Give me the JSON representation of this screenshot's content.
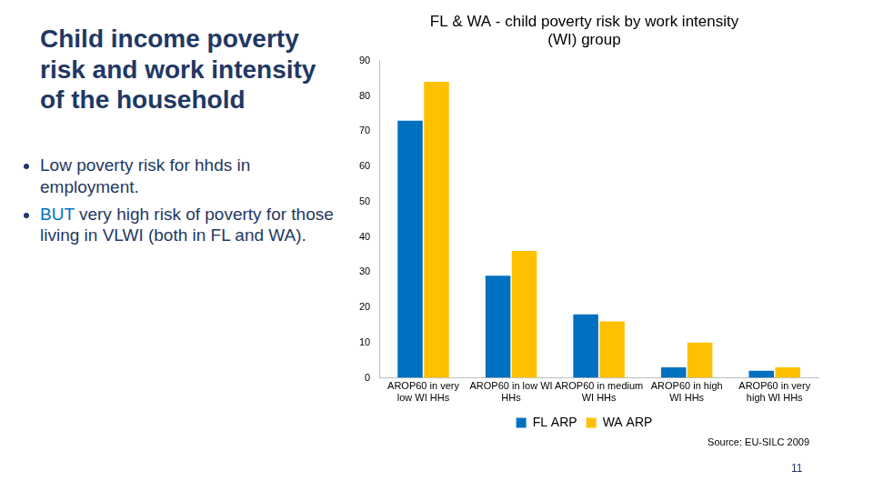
{
  "slide": {
    "title": "Child income poverty risk and work intensity of the household",
    "bullets": [
      [
        "Low poverty risk for hhds in employment."
      ],
      [
        "BUT",
        "very high risk of poverty for those living in VLWI (both in FL and WA)."
      ]
    ],
    "source": "Source: EU-SILC 2009",
    "page": 11
  },
  "chart_data": {
    "type": "bar",
    "title": "FL & WA - child poverty risk by work intensity (WI) group",
    "categories": [
      "AROP60 in very low WI HHs",
      "AROP60 in low WI HHs",
      "AROP60 in medium WI HHs",
      "AROP60 in high WI HHs",
      "AROP60 in very high WI HHs"
    ],
    "series": [
      {
        "name": "FL ARP",
        "color": "#0070c0",
        "values": [
          73,
          29,
          18,
          3,
          2
        ]
      },
      {
        "name": "WA ARP",
        "color": "#ffc000",
        "values": [
          84,
          36,
          16,
          10,
          3
        ]
      }
    ],
    "ylim": [
      0,
      90
    ],
    "yticks": [
      0,
      10,
      20,
      30,
      40,
      50,
      60,
      70,
      80,
      90
    ],
    "grid": false,
    "legend": "bottom"
  }
}
